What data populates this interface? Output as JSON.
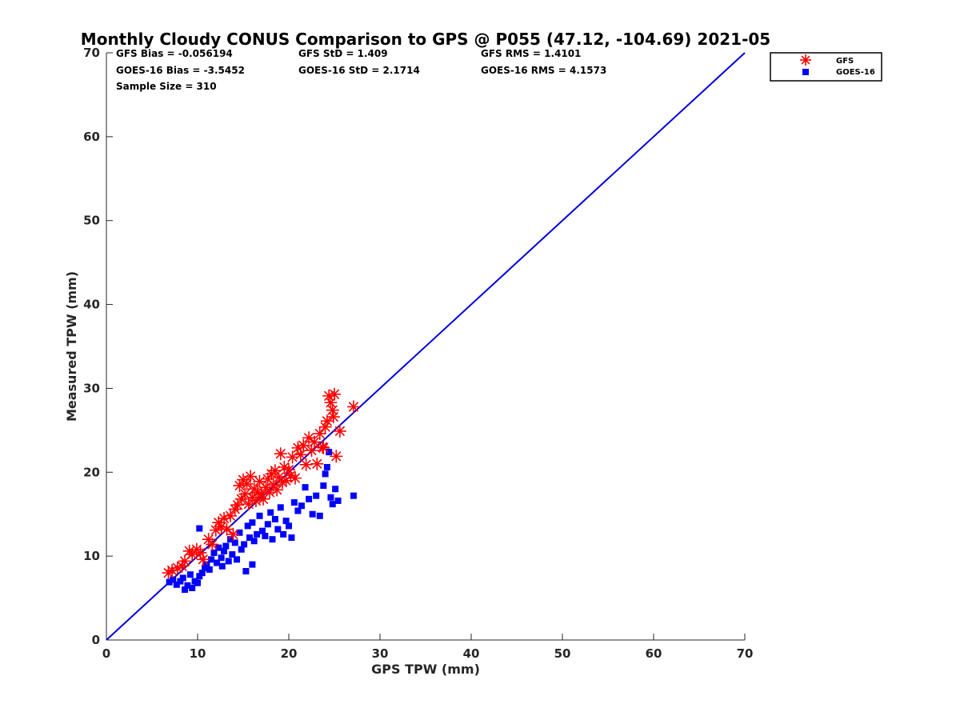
{
  "chart_data": {
    "type": "scatter",
    "title": "Monthly Cloudy CONUS Comparison to GPS @ P055 (47.12, -104.69) 2021-05",
    "xlabel": "GPS TPW (mm)",
    "ylabel": "Measured TPW (mm)",
    "xlim": [
      0,
      70
    ],
    "ylim": [
      0,
      70
    ],
    "xticks": [
      0,
      10,
      20,
      30,
      40,
      50,
      60,
      70
    ],
    "yticks": [
      0,
      10,
      20,
      30,
      40,
      50,
      60,
      70
    ],
    "stats": [
      [
        "GFS Bias = -0.056194",
        "GFS StD = 1.409",
        "GFS RMS = 1.4101"
      ],
      [
        "GOES-16 Bias = -3.5452",
        "GOES-16 StD = 2.1714",
        "GOES-16 RMS = 4.1573"
      ],
      [
        "Sample Size = 310"
      ]
    ],
    "reference_line": {
      "name": "1:1",
      "x": [
        0,
        70
      ],
      "y": [
        0,
        70
      ],
      "color": "#0000e0"
    },
    "legend_position": "outside-top-right",
    "series": [
      {
        "name": "GFS",
        "marker": "asterisk",
        "color": "#ff0000",
        "points": [
          [
            6.8,
            8.0
          ],
          [
            7.2,
            8.3
          ],
          [
            7.8,
            8.6
          ],
          [
            8.3,
            8.8
          ],
          [
            8.6,
            9.4
          ],
          [
            9.1,
            10.6
          ],
          [
            9.4,
            10.2
          ],
          [
            9.9,
            10.8
          ],
          [
            10.3,
            10.4
          ],
          [
            10.6,
            9.6
          ],
          [
            11.2,
            12.0
          ],
          [
            11.6,
            11.4
          ],
          [
            12.0,
            13.1
          ],
          [
            12.3,
            14.0
          ],
          [
            12.6,
            13.5
          ],
          [
            12.9,
            14.5
          ],
          [
            13.2,
            13.2
          ],
          [
            13.6,
            14.8
          ],
          [
            13.9,
            12.6
          ],
          [
            14.1,
            15.6
          ],
          [
            14.4,
            16.1
          ],
          [
            14.6,
            18.4
          ],
          [
            14.8,
            16.8
          ],
          [
            15.0,
            19.1
          ],
          [
            15.2,
            17.4
          ],
          [
            15.4,
            18.6
          ],
          [
            15.6,
            16.2
          ],
          [
            15.8,
            19.5
          ],
          [
            16.0,
            17.0
          ],
          [
            16.2,
            18.0
          ],
          [
            16.4,
            16.6
          ],
          [
            16.6,
            17.6
          ],
          [
            16.8,
            18.9
          ],
          [
            17.0,
            17.4
          ],
          [
            17.2,
            16.8
          ],
          [
            17.5,
            18.2
          ],
          [
            17.7,
            19.2
          ],
          [
            17.9,
            17.6
          ],
          [
            18.1,
            19.8
          ],
          [
            18.3,
            18.5
          ],
          [
            18.5,
            20.2
          ],
          [
            18.7,
            17.9
          ],
          [
            18.9,
            19.4
          ],
          [
            19.1,
            22.2
          ],
          [
            19.3,
            18.8
          ],
          [
            19.5,
            20.6
          ],
          [
            19.7,
            19.0
          ],
          [
            20.0,
            20.3
          ],
          [
            20.2,
            19.6
          ],
          [
            20.4,
            21.8
          ],
          [
            20.7,
            19.3
          ],
          [
            21.0,
            22.9
          ],
          [
            21.3,
            22.1
          ],
          [
            21.6,
            23.2
          ],
          [
            21.9,
            20.9
          ],
          [
            22.2,
            24.1
          ],
          [
            22.5,
            22.6
          ],
          [
            22.8,
            23.6
          ],
          [
            23.1,
            21.0
          ],
          [
            23.4,
            24.6
          ],
          [
            23.7,
            23.0
          ],
          [
            24.0,
            25.4
          ],
          [
            24.2,
            26.1
          ],
          [
            24.4,
            29.1
          ],
          [
            24.6,
            28.3
          ],
          [
            24.8,
            27.4
          ],
          [
            25.0,
            29.3
          ],
          [
            25.2,
            21.9
          ],
          [
            25.6,
            24.9
          ],
          [
            27.1,
            27.8
          ],
          [
            24.9,
            26.6
          ],
          [
            23.8,
            22.9
          ]
        ]
      },
      {
        "name": "GOES-16",
        "marker": "square",
        "color": "#0000ff",
        "points": [
          [
            6.9,
            6.9
          ],
          [
            7.3,
            7.2
          ],
          [
            7.7,
            6.6
          ],
          [
            8.1,
            7.0
          ],
          [
            8.4,
            7.4
          ],
          [
            8.6,
            6.0
          ],
          [
            8.9,
            6.5
          ],
          [
            9.2,
            7.8
          ],
          [
            9.4,
            6.2
          ],
          [
            9.7,
            7.0
          ],
          [
            10.0,
            6.8
          ],
          [
            10.2,
            7.6
          ],
          [
            10.5,
            8.0
          ],
          [
            10.8,
            8.6
          ],
          [
            10.2,
            13.3
          ],
          [
            11.0,
            9.0
          ],
          [
            11.3,
            8.4
          ],
          [
            11.5,
            9.6
          ],
          [
            11.8,
            10.4
          ],
          [
            12.1,
            9.2
          ],
          [
            12.3,
            11.0
          ],
          [
            12.6,
            9.8
          ],
          [
            12.9,
            10.6
          ],
          [
            13.1,
            11.2
          ],
          [
            13.4,
            9.4
          ],
          [
            13.6,
            12.0
          ],
          [
            13.8,
            10.2
          ],
          [
            14.1,
            11.6
          ],
          [
            14.3,
            9.6
          ],
          [
            14.6,
            12.8
          ],
          [
            14.8,
            10.8
          ],
          [
            15.1,
            11.4
          ],
          [
            15.3,
            8.2
          ],
          [
            15.5,
            13.6
          ],
          [
            15.7,
            12.2
          ],
          [
            16.0,
            14.0
          ],
          [
            16.2,
            11.8
          ],
          [
            16.5,
            12.6
          ],
          [
            16.8,
            14.8
          ],
          [
            17.1,
            13.0
          ],
          [
            17.4,
            12.4
          ],
          [
            17.7,
            13.8
          ],
          [
            18.0,
            15.2
          ],
          [
            18.2,
            12.0
          ],
          [
            18.5,
            14.4
          ],
          [
            18.8,
            13.2
          ],
          [
            19.1,
            15.8
          ],
          [
            19.4,
            12.6
          ],
          [
            19.7,
            14.2
          ],
          [
            20.0,
            13.6
          ],
          [
            20.3,
            12.2
          ],
          [
            20.6,
            16.4
          ],
          [
            21.0,
            15.4
          ],
          [
            21.4,
            16.0
          ],
          [
            21.8,
            18.2
          ],
          [
            22.2,
            16.8
          ],
          [
            22.6,
            15.0
          ],
          [
            23.0,
            17.2
          ],
          [
            23.4,
            14.8
          ],
          [
            23.8,
            18.4
          ],
          [
            24.0,
            19.8
          ],
          [
            24.2,
            20.6
          ],
          [
            24.4,
            22.4
          ],
          [
            24.6,
            17.0
          ],
          [
            24.8,
            16.2
          ],
          [
            25.1,
            18.0
          ],
          [
            25.4,
            16.6
          ],
          [
            27.1,
            17.2
          ],
          [
            16.0,
            9.0
          ],
          [
            12.7,
            8.8
          ]
        ]
      }
    ]
  }
}
